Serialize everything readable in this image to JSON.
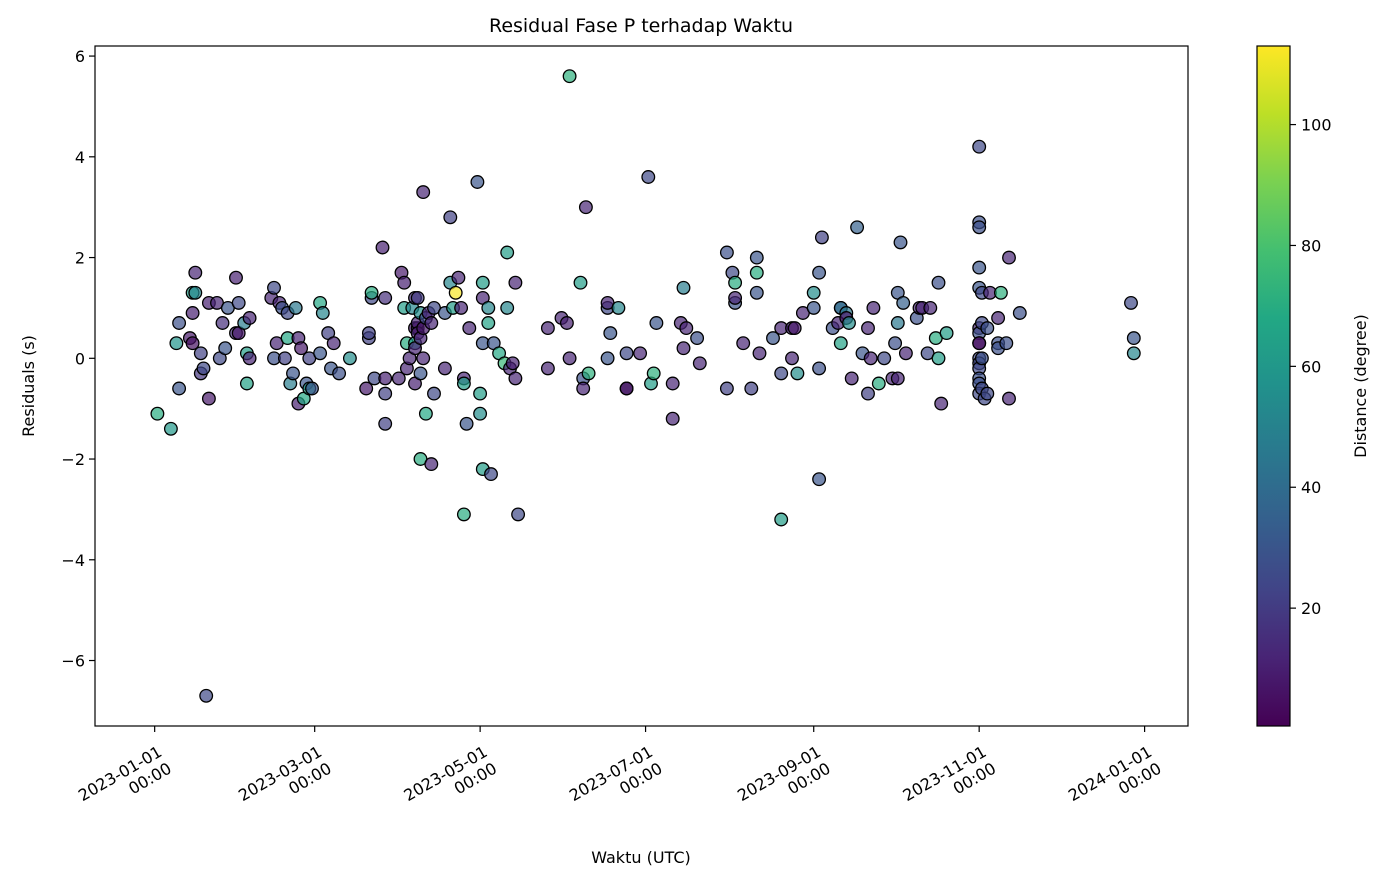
{
  "chart_data": {
    "type": "scatter",
    "title": "Residual Fase P terhadap Waktu",
    "xlabel": "Waktu (UTC)",
    "ylabel": "Residuals (s)",
    "colorbar_label": "Distance (degree)",
    "xlim": [
      "2022-12-10",
      "2024-01-17"
    ],
    "ylim": [
      -7.3,
      6.2
    ],
    "clim": [
      0.5,
      113
    ],
    "colormap": "viridis",
    "grid": false,
    "x_ticks": [
      {
        "date": "2023-01-01",
        "line1": "2023-01-01",
        "line2": "00:00"
      },
      {
        "date": "2023-03-01",
        "line1": "2023-03-01",
        "line2": "00:00"
      },
      {
        "date": "2023-05-01",
        "line1": "2023-05-01",
        "line2": "00:00"
      },
      {
        "date": "2023-07-01",
        "line1": "2023-07-01",
        "line2": "00:00"
      },
      {
        "date": "2023-09-01",
        "line1": "2023-09-01",
        "line2": "00:00"
      },
      {
        "date": "2023-11-01",
        "line1": "2023-11-01",
        "line2": "00:00"
      },
      {
        "date": "2024-01-01",
        "line1": "2024-01-01",
        "line2": "00:00"
      }
    ],
    "y_ticks": [
      {
        "v": 6,
        "label": "6"
      },
      {
        "v": 4,
        "label": "4"
      },
      {
        "v": 2,
        "label": "2"
      },
      {
        "v": 0,
        "label": "0"
      },
      {
        "v": -2,
        "label": "−2"
      },
      {
        "v": -4,
        "label": "−4"
      },
      {
        "v": -6,
        "label": "−6"
      }
    ],
    "colorbar_ticks": [
      {
        "v": 20,
        "label": "20"
      },
      {
        "v": 40,
        "label": "40"
      },
      {
        "v": 60,
        "label": "60"
      },
      {
        "v": 80,
        "label": "80"
      },
      {
        "v": 100,
        "label": "100"
      }
    ],
    "points": [
      [
        "2023-01-02",
        -1.1,
        70
      ],
      [
        "2023-01-07",
        -1.4,
        60
      ],
      [
        "2023-01-09",
        0.3,
        58
      ],
      [
        "2023-01-10",
        -0.6,
        30
      ],
      [
        "2023-01-10",
        0.7,
        28
      ],
      [
        "2023-01-14",
        0.4,
        8
      ],
      [
        "2023-01-15",
        0.3,
        5
      ],
      [
        "2023-01-15",
        0.9,
        10
      ],
      [
        "2023-01-15",
        1.3,
        62
      ],
      [
        "2023-01-16",
        1.3,
        52
      ],
      [
        "2023-01-16",
        1.7,
        12
      ],
      [
        "2023-01-18",
        0.1,
        22
      ],
      [
        "2023-01-18",
        -0.3,
        18
      ],
      [
        "2023-01-19",
        -0.2,
        25
      ],
      [
        "2023-01-20",
        -6.7,
        25
      ],
      [
        "2023-01-21",
        1.1,
        10
      ],
      [
        "2023-01-21",
        -0.8,
        8
      ],
      [
        "2023-01-24",
        1.1,
        12
      ],
      [
        "2023-01-25",
        0.0,
        25
      ],
      [
        "2023-01-26",
        0.7,
        15
      ],
      [
        "2023-01-27",
        0.2,
        30
      ],
      [
        "2023-01-28",
        1.0,
        30
      ],
      [
        "2023-01-31",
        0.5,
        15
      ],
      [
        "2023-01-31",
        1.6,
        10
      ],
      [
        "2023-02-01",
        1.1,
        25
      ],
      [
        "2023-02-01",
        0.5,
        8
      ],
      [
        "2023-02-03",
        0.7,
        48
      ],
      [
        "2023-02-04",
        -0.5,
        65
      ],
      [
        "2023-02-04",
        0.1,
        62
      ],
      [
        "2023-02-05",
        0.0,
        12
      ],
      [
        "2023-02-05",
        0.8,
        12
      ],
      [
        "2023-02-13",
        1.2,
        12
      ],
      [
        "2023-02-14",
        0.0,
        28
      ],
      [
        "2023-02-14",
        1.4,
        25
      ],
      [
        "2023-02-15",
        0.3,
        12
      ],
      [
        "2023-02-16",
        1.1,
        12
      ],
      [
        "2023-02-17",
        1.0,
        28
      ],
      [
        "2023-02-18",
        0.0,
        22
      ],
      [
        "2023-02-19",
        0.9,
        25
      ],
      [
        "2023-02-19",
        0.4,
        68
      ],
      [
        "2023-02-20",
        -0.5,
        48
      ],
      [
        "2023-02-21",
        -0.3,
        30
      ],
      [
        "2023-02-22",
        1.0,
        45
      ],
      [
        "2023-02-23",
        0.4,
        12
      ],
      [
        "2023-02-23",
        -0.9,
        10
      ],
      [
        "2023-02-24",
        0.2,
        8
      ],
      [
        "2023-02-25",
        -0.8,
        68
      ],
      [
        "2023-02-26",
        -0.5,
        30
      ],
      [
        "2023-02-27",
        -0.6,
        62
      ],
      [
        "2023-02-27",
        0.0,
        22
      ],
      [
        "2023-02-28",
        -0.6,
        30
      ],
      [
        "2023-03-03",
        0.1,
        30
      ],
      [
        "2023-03-03",
        1.1,
        68
      ],
      [
        "2023-03-04",
        0.9,
        52
      ],
      [
        "2023-03-06",
        0.5,
        22
      ],
      [
        "2023-03-07",
        -0.2,
        30
      ],
      [
        "2023-03-08",
        0.3,
        12
      ],
      [
        "2023-03-10",
        -0.3,
        28
      ],
      [
        "2023-03-14",
        0.0,
        55
      ],
      [
        "2023-03-20",
        -0.6,
        8
      ],
      [
        "2023-03-21",
        0.4,
        22
      ],
      [
        "2023-03-21",
        0.5,
        22
      ],
      [
        "2023-03-22",
        1.2,
        25
      ],
      [
        "2023-03-22",
        1.3,
        70
      ],
      [
        "2023-03-23",
        -0.4,
        25
      ],
      [
        "2023-03-26",
        2.2,
        10
      ],
      [
        "2023-03-27",
        -1.3,
        22
      ],
      [
        "2023-03-27",
        1.2,
        15
      ],
      [
        "2023-03-27",
        -0.4,
        10
      ],
      [
        "2023-03-27",
        -0.7,
        22
      ],
      [
        "2023-04-01",
        -0.4,
        12
      ],
      [
        "2023-04-02",
        1.7,
        8
      ],
      [
        "2023-04-03",
        1.5,
        10
      ],
      [
        "2023-04-03",
        1.0,
        62
      ],
      [
        "2023-04-04",
        0.3,
        70
      ],
      [
        "2023-04-04",
        -0.2,
        12
      ],
      [
        "2023-04-05",
        0.0,
        12
      ],
      [
        "2023-04-06",
        1.0,
        52
      ],
      [
        "2023-04-07",
        -0.5,
        10
      ],
      [
        "2023-04-07",
        0.3,
        62
      ],
      [
        "2023-04-07",
        0.2,
        12
      ],
      [
        "2023-04-07",
        0.6,
        10
      ],
      [
        "2023-04-07",
        1.2,
        15
      ],
      [
        "2023-04-08",
        0.6,
        1
      ],
      [
        "2023-04-08",
        1.2,
        20
      ],
      [
        "2023-04-08",
        0.7,
        12
      ],
      [
        "2023-04-08",
        0.5,
        12
      ],
      [
        "2023-04-09",
        -0.3,
        30
      ],
      [
        "2023-04-09",
        -2.0,
        70
      ],
      [
        "2023-04-09",
        0.9,
        55
      ],
      [
        "2023-04-09",
        0.4,
        12
      ],
      [
        "2023-04-10",
        0.0,
        12
      ],
      [
        "2023-04-10",
        3.3,
        12
      ],
      [
        "2023-04-10",
        0.6,
        8
      ],
      [
        "2023-04-11",
        0.8,
        25
      ],
      [
        "2023-04-11",
        -1.1,
        68
      ],
      [
        "2023-04-12",
        0.9,
        12
      ],
      [
        "2023-04-13",
        -2.1,
        12
      ],
      [
        "2023-04-13",
        0.7,
        12
      ],
      [
        "2023-04-14",
        1.0,
        25
      ],
      [
        "2023-04-14",
        -0.7,
        25
      ],
      [
        "2023-04-18",
        -0.2,
        12
      ],
      [
        "2023-04-18",
        0.9,
        30
      ],
      [
        "2023-04-20",
        2.8,
        22
      ],
      [
        "2023-04-20",
        1.5,
        52
      ],
      [
        "2023-04-21",
        1.0,
        62
      ],
      [
        "2023-04-22",
        1.3,
        112
      ],
      [
        "2023-04-23",
        1.6,
        12
      ],
      [
        "2023-04-24",
        1.0,
        12
      ],
      [
        "2023-04-25",
        -3.1,
        70
      ],
      [
        "2023-04-25",
        -0.4,
        12
      ],
      [
        "2023-04-25",
        -0.5,
        62
      ],
      [
        "2023-04-26",
        -1.3,
        30
      ],
      [
        "2023-04-27",
        0.6,
        12
      ],
      [
        "2023-04-30",
        3.5,
        30
      ],
      [
        "2023-05-01",
        -0.7,
        62
      ],
      [
        "2023-05-01",
        -1.1,
        55
      ],
      [
        "2023-05-02",
        -2.2,
        62
      ],
      [
        "2023-05-02",
        0.3,
        30
      ],
      [
        "2023-05-02",
        1.5,
        62
      ],
      [
        "2023-05-02",
        1.2,
        12
      ],
      [
        "2023-05-04",
        0.7,
        65
      ],
      [
        "2023-05-04",
        1.0,
        52
      ],
      [
        "2023-05-05",
        -2.3,
        25
      ],
      [
        "2023-05-06",
        0.3,
        30
      ],
      [
        "2023-05-08",
        0.1,
        68
      ],
      [
        "2023-05-10",
        -0.1,
        75
      ],
      [
        "2023-05-11",
        1.0,
        52
      ],
      [
        "2023-05-11",
        2.1,
        62
      ],
      [
        "2023-05-12",
        -0.2,
        12
      ],
      [
        "2023-05-13",
        -0.1,
        10
      ],
      [
        "2023-05-14",
        -0.4,
        12
      ],
      [
        "2023-05-14",
        1.5,
        12
      ],
      [
        "2023-05-15",
        -3.1,
        25
      ],
      [
        "2023-05-26",
        -0.2,
        12
      ],
      [
        "2023-05-26",
        0.6,
        12
      ],
      [
        "2023-05-31",
        0.8,
        12
      ],
      [
        "2023-06-02",
        0.7,
        10
      ],
      [
        "2023-06-03",
        5.6,
        72
      ],
      [
        "2023-06-03",
        0.0,
        12
      ],
      [
        "2023-06-07",
        1.5,
        62
      ],
      [
        "2023-06-08",
        -0.4,
        28
      ],
      [
        "2023-06-08",
        -0.6,
        12
      ],
      [
        "2023-06-09",
        3.0,
        12
      ],
      [
        "2023-06-10",
        -0.3,
        72
      ],
      [
        "2023-06-17",
        0.0,
        30
      ],
      [
        "2023-06-17",
        1.0,
        25
      ],
      [
        "2023-06-17",
        1.1,
        12
      ],
      [
        "2023-06-18",
        0.5,
        30
      ],
      [
        "2023-06-21",
        1.0,
        52
      ],
      [
        "2023-06-24",
        0.1,
        25
      ],
      [
        "2023-06-24",
        -0.6,
        28
      ],
      [
        "2023-06-24",
        -0.6,
        1
      ],
      [
        "2023-06-29",
        0.1,
        12
      ],
      [
        "2023-07-02",
        3.6,
        25
      ],
      [
        "2023-07-03",
        -0.5,
        62
      ],
      [
        "2023-07-04",
        -0.3,
        72
      ],
      [
        "2023-07-05",
        0.7,
        30
      ],
      [
        "2023-07-11",
        -0.5,
        12
      ],
      [
        "2023-07-11",
        -1.2,
        12
      ],
      [
        "2023-07-14",
        0.7,
        12
      ],
      [
        "2023-07-15",
        1.4,
        48
      ],
      [
        "2023-07-15",
        0.2,
        12
      ],
      [
        "2023-07-16",
        0.6,
        12
      ],
      [
        "2023-07-20",
        0.4,
        28
      ],
      [
        "2023-07-21",
        -0.1,
        12
      ],
      [
        "2023-07-31",
        2.1,
        28
      ],
      [
        "2023-07-31",
        -0.6,
        22
      ],
      [
        "2023-08-02",
        1.7,
        25
      ],
      [
        "2023-08-03",
        1.1,
        30
      ],
      [
        "2023-08-03",
        1.2,
        12
      ],
      [
        "2023-08-03",
        1.5,
        70
      ],
      [
        "2023-08-06",
        0.3,
        12
      ],
      [
        "2023-08-09",
        -0.6,
        22
      ],
      [
        "2023-08-11",
        1.3,
        30
      ],
      [
        "2023-08-11",
        2.0,
        30
      ],
      [
        "2023-08-11",
        1.7,
        70
      ],
      [
        "2023-08-12",
        0.1,
        12
      ],
      [
        "2023-08-17",
        0.4,
        30
      ],
      [
        "2023-08-20",
        0.6,
        12
      ],
      [
        "2023-08-20",
        -0.3,
        25
      ],
      [
        "2023-08-20",
        -3.2,
        62
      ],
      [
        "2023-08-24",
        0.6,
        12
      ],
      [
        "2023-08-24",
        0.0,
        12
      ],
      [
        "2023-08-25",
        0.6,
        8
      ],
      [
        "2023-08-26",
        -0.3,
        55
      ],
      [
        "2023-08-28",
        0.9,
        12
      ],
      [
        "2023-09-01",
        1.0,
        30
      ],
      [
        "2023-09-01",
        1.3,
        55
      ],
      [
        "2023-09-03",
        1.7,
        30
      ],
      [
        "2023-09-03",
        -0.2,
        28
      ],
      [
        "2023-09-03",
        -2.4,
        30
      ],
      [
        "2023-09-04",
        2.4,
        22
      ],
      [
        "2023-09-08",
        0.6,
        28
      ],
      [
        "2023-09-10",
        0.7,
        12
      ],
      [
        "2023-09-11",
        0.3,
        65
      ],
      [
        "2023-09-11",
        1.0,
        52
      ],
      [
        "2023-09-11",
        1.0,
        35
      ],
      [
        "2023-09-13",
        0.9,
        45
      ],
      [
        "2023-09-13",
        0.8,
        8
      ],
      [
        "2023-09-14",
        0.7,
        55
      ],
      [
        "2023-09-15",
        -0.4,
        12
      ],
      [
        "2023-09-17",
        2.6,
        35
      ],
      [
        "2023-09-19",
        0.1,
        30
      ],
      [
        "2023-09-21",
        0.6,
        12
      ],
      [
        "2023-09-21",
        -0.7,
        22
      ],
      [
        "2023-09-22",
        0.0,
        12
      ],
      [
        "2023-09-23",
        1.0,
        12
      ],
      [
        "2023-09-25",
        -0.5,
        70
      ],
      [
        "2023-09-27",
        0.0,
        25
      ],
      [
        "2023-09-30",
        -0.4,
        12
      ],
      [
        "2023-10-01",
        0.3,
        28
      ],
      [
        "2023-10-02",
        1.3,
        30
      ],
      [
        "2023-10-02",
        0.7,
        45
      ],
      [
        "2023-10-02",
        -0.4,
        12
      ],
      [
        "2023-10-03",
        2.3,
        30
      ],
      [
        "2023-10-04",
        1.1,
        35
      ],
      [
        "2023-10-05",
        0.1,
        12
      ],
      [
        "2023-10-09",
        0.8,
        28
      ],
      [
        "2023-10-10",
        1.0,
        12
      ],
      [
        "2023-10-11",
        1.0,
        12
      ],
      [
        "2023-10-13",
        0.1,
        25
      ],
      [
        "2023-10-14",
        1.0,
        12
      ],
      [
        "2023-10-16",
        0.4,
        70
      ],
      [
        "2023-10-17",
        1.5,
        28
      ],
      [
        "2023-10-17",
        0.0,
        62
      ],
      [
        "2023-10-18",
        -0.9,
        12
      ],
      [
        "2023-10-20",
        0.5,
        62
      ],
      [
        "2023-11-01",
        4.2,
        25
      ],
      [
        "2023-11-01",
        2.7,
        28
      ],
      [
        "2023-11-01",
        2.6,
        28
      ],
      [
        "2023-11-01",
        1.8,
        30
      ],
      [
        "2023-11-01",
        1.4,
        30
      ],
      [
        "2023-11-01",
        0.6,
        12
      ],
      [
        "2023-11-01",
        0.5,
        28
      ],
      [
        "2023-11-01",
        0.3,
        1
      ],
      [
        "2023-11-01",
        0.3,
        8
      ],
      [
        "2023-11-01",
        0.0,
        25
      ],
      [
        "2023-11-01",
        -0.1,
        25
      ],
      [
        "2023-11-01",
        -0.2,
        25
      ],
      [
        "2023-11-01",
        -0.4,
        28
      ],
      [
        "2023-11-01",
        -0.5,
        28
      ],
      [
        "2023-11-01",
        -0.7,
        25
      ],
      [
        "2023-11-02",
        1.3,
        25
      ],
      [
        "2023-11-02",
        0.7,
        25
      ],
      [
        "2023-11-02",
        0.0,
        28
      ],
      [
        "2023-11-02",
        -0.6,
        25
      ],
      [
        "2023-11-03",
        -0.8,
        25
      ],
      [
        "2023-11-04",
        0.6,
        28
      ],
      [
        "2023-11-04",
        -0.7,
        25
      ],
      [
        "2023-11-05",
        1.3,
        12
      ],
      [
        "2023-11-08",
        0.3,
        28
      ],
      [
        "2023-11-08",
        0.2,
        28
      ],
      [
        "2023-11-08",
        0.8,
        12
      ],
      [
        "2023-11-09",
        1.3,
        72
      ],
      [
        "2023-11-11",
        0.3,
        28
      ],
      [
        "2023-11-12",
        -0.8,
        12
      ],
      [
        "2023-11-12",
        2.0,
        12
      ],
      [
        "2023-11-16",
        0.9,
        28
      ],
      [
        "2023-12-27",
        1.1,
        25
      ],
      [
        "2023-12-28",
        0.4,
        30
      ],
      [
        "2023-12-28",
        0.1,
        52
      ]
    ]
  }
}
